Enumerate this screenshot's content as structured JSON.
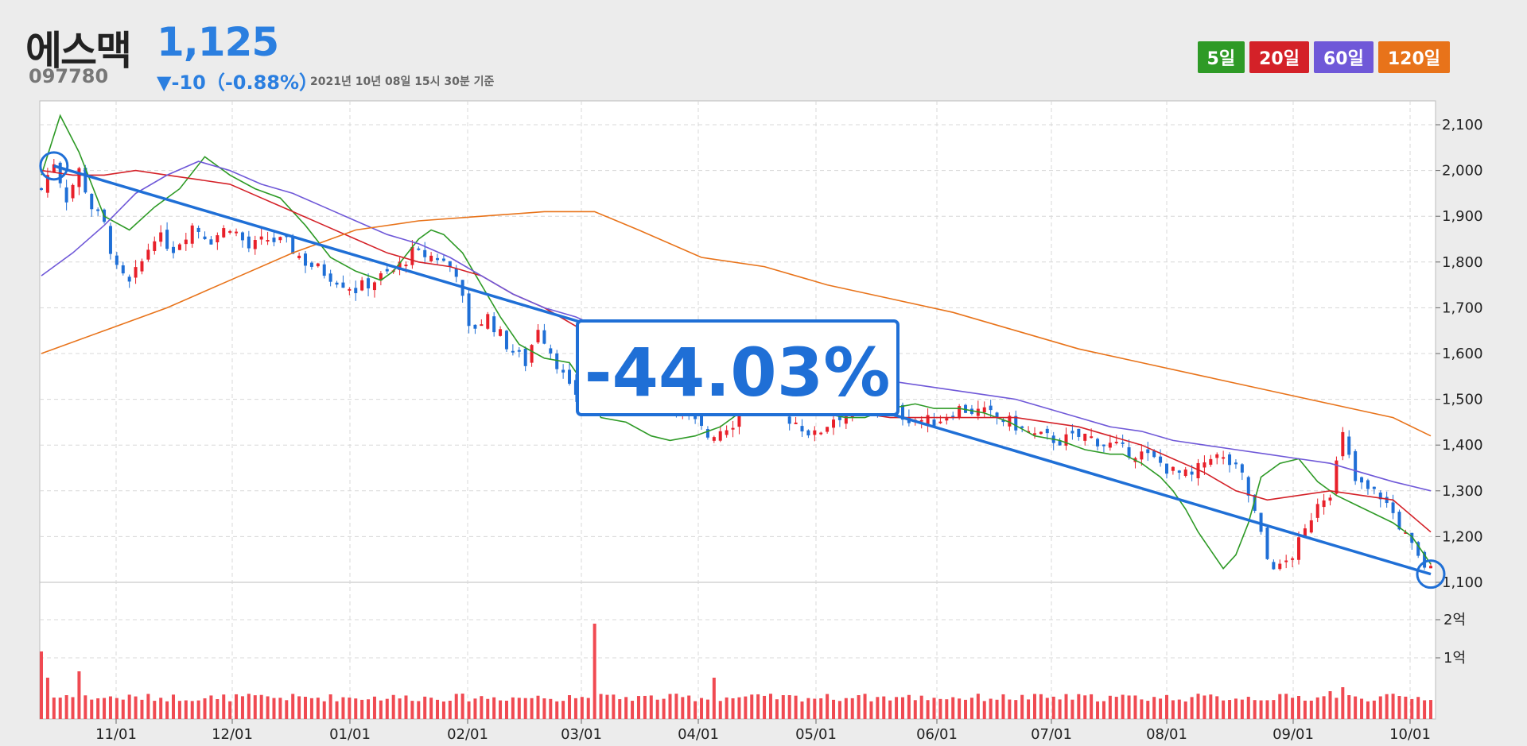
{
  "stock": {
    "name": "에스맥",
    "code": "097780",
    "price": "1,125",
    "change": "▼-10（-0.88%）",
    "as_of": "2021년 10년 08일 15시 30분 기준"
  },
  "ma_legend": [
    {
      "label": "5일",
      "color": "#2e9a26"
    },
    {
      "label": "20일",
      "color": "#d42128"
    },
    {
      "label": "60일",
      "color": "#6f58d8"
    },
    {
      "label": "120일",
      "color": "#e8731a"
    }
  ],
  "colors": {
    "up": "#e8202a",
    "down": "#1f6fd6",
    "ma5": "#2e9a26",
    "ma20": "#d42128",
    "ma60": "#6f58d8",
    "ma120": "#e8731a",
    "trend": "#1f6fd6",
    "volume": "#f04a52"
  },
  "chart_data": {
    "type": "line",
    "price_ticks": [
      "1,100",
      "1,200",
      "1,300",
      "1,400",
      "1,500",
      "1,600",
      "1,700",
      "1,800",
      "1,900",
      "2,000",
      "2,100"
    ],
    "volume_ticks": [
      "1억",
      "2억"
    ],
    "x_ticks": [
      "11/01",
      "12/01",
      "01/01",
      "02/01",
      "03/01",
      "04/01",
      "05/01",
      "06/01",
      "07/01",
      "08/01",
      "09/01",
      "10/01"
    ],
    "ylim": [
      1100,
      2100
    ],
    "trend_annotation": "-44.03%",
    "trend_line": {
      "start": 2010,
      "end": 1118
    },
    "ma_series": [
      {
        "name": "5일",
        "points": [
          [
            0,
            1990
          ],
          [
            3,
            2120
          ],
          [
            6,
            2040
          ],
          [
            10,
            1900
          ],
          [
            14,
            1870
          ],
          [
            18,
            1920
          ],
          [
            22,
            1960
          ],
          [
            26,
            2030
          ],
          [
            30,
            1990
          ],
          [
            34,
            1960
          ],
          [
            38,
            1940
          ],
          [
            42,
            1880
          ],
          [
            46,
            1810
          ],
          [
            50,
            1780
          ],
          [
            54,
            1760
          ],
          [
            56,
            1780
          ],
          [
            60,
            1850
          ],
          [
            62,
            1870
          ],
          [
            64,
            1860
          ],
          [
            67,
            1820
          ],
          [
            70,
            1750
          ],
          [
            73,
            1680
          ],
          [
            76,
            1620
          ],
          [
            80,
            1590
          ],
          [
            84,
            1580
          ],
          [
            87,
            1520
          ],
          [
            89,
            1460
          ],
          [
            93,
            1450
          ],
          [
            97,
            1420
          ],
          [
            100,
            1410
          ],
          [
            104,
            1420
          ],
          [
            108,
            1440
          ],
          [
            112,
            1480
          ],
          [
            116,
            1500
          ],
          [
            120,
            1490
          ],
          [
            124,
            1470
          ],
          [
            128,
            1460
          ],
          [
            131,
            1460
          ],
          [
            135,
            1480
          ],
          [
            139,
            1490
          ],
          [
            142,
            1480
          ],
          [
            146,
            1480
          ],
          [
            150,
            1470
          ],
          [
            154,
            1450
          ],
          [
            158,
            1420
          ],
          [
            162,
            1410
          ],
          [
            166,
            1390
          ],
          [
            170,
            1380
          ],
          [
            172,
            1380
          ],
          [
            175,
            1360
          ],
          [
            178,
            1330
          ],
          [
            180,
            1300
          ],
          [
            182,
            1260
          ],
          [
            184,
            1210
          ],
          [
            186,
            1170
          ],
          [
            188,
            1130
          ],
          [
            190,
            1160
          ],
          [
            192,
            1230
          ],
          [
            194,
            1330
          ],
          [
            197,
            1360
          ],
          [
            200,
            1370
          ],
          [
            203,
            1320
          ],
          [
            206,
            1290
          ],
          [
            209,
            1270
          ],
          [
            212,
            1250
          ],
          [
            215,
            1230
          ],
          [
            218,
            1200
          ],
          [
            221,
            1140
          ]
        ]
      },
      {
        "name": "20일",
        "points": [
          [
            0,
            2000
          ],
          [
            5,
            1990
          ],
          [
            10,
            1990
          ],
          [
            15,
            2000
          ],
          [
            20,
            1990
          ],
          [
            25,
            1980
          ],
          [
            30,
            1970
          ],
          [
            35,
            1940
          ],
          [
            40,
            1910
          ],
          [
            45,
            1880
          ],
          [
            50,
            1850
          ],
          [
            55,
            1820
          ],
          [
            60,
            1800
          ],
          [
            65,
            1790
          ],
          [
            70,
            1770
          ],
          [
            75,
            1730
          ],
          [
            80,
            1700
          ],
          [
            85,
            1660
          ],
          [
            90,
            1610
          ],
          [
            95,
            1570
          ],
          [
            100,
            1540
          ],
          [
            105,
            1520
          ],
          [
            110,
            1500
          ],
          [
            115,
            1500
          ],
          [
            120,
            1490
          ],
          [
            125,
            1480
          ],
          [
            130,
            1470
          ],
          [
            135,
            1460
          ],
          [
            140,
            1460
          ],
          [
            145,
            1460
          ],
          [
            150,
            1460
          ],
          [
            155,
            1460
          ],
          [
            160,
            1450
          ],
          [
            165,
            1440
          ],
          [
            170,
            1420
          ],
          [
            175,
            1400
          ],
          [
            180,
            1370
          ],
          [
            185,
            1340
          ],
          [
            190,
            1300
          ],
          [
            195,
            1280
          ],
          [
            200,
            1290
          ],
          [
            205,
            1300
          ],
          [
            210,
            1290
          ],
          [
            215,
            1280
          ],
          [
            221,
            1210
          ]
        ]
      },
      {
        "name": "60일",
        "points": [
          [
            0,
            1770
          ],
          [
            5,
            1820
          ],
          [
            10,
            1880
          ],
          [
            15,
            1950
          ],
          [
            20,
            1990
          ],
          [
            25,
            2020
          ],
          [
            30,
            2000
          ],
          [
            35,
            1970
          ],
          [
            40,
            1950
          ],
          [
            45,
            1920
          ],
          [
            50,
            1890
          ],
          [
            55,
            1860
          ],
          [
            60,
            1840
          ],
          [
            65,
            1810
          ],
          [
            70,
            1770
          ],
          [
            75,
            1730
          ],
          [
            80,
            1700
          ],
          [
            85,
            1680
          ],
          [
            90,
            1650
          ],
          [
            95,
            1620
          ],
          [
            100,
            1590
          ],
          [
            105,
            1570
          ],
          [
            110,
            1560
          ],
          [
            115,
            1560
          ],
          [
            120,
            1550
          ],
          [
            125,
            1550
          ],
          [
            130,
            1550
          ],
          [
            135,
            1540
          ],
          [
            140,
            1530
          ],
          [
            145,
            1520
          ],
          [
            150,
            1510
          ],
          [
            155,
            1500
          ],
          [
            160,
            1480
          ],
          [
            165,
            1460
          ],
          [
            170,
            1440
          ],
          [
            175,
            1430
          ],
          [
            180,
            1410
          ],
          [
            185,
            1400
          ],
          [
            190,
            1390
          ],
          [
            195,
            1380
          ],
          [
            200,
            1370
          ],
          [
            205,
            1360
          ],
          [
            210,
            1340
          ],
          [
            215,
            1320
          ],
          [
            221,
            1300
          ]
        ]
      },
      {
        "name": "120일",
        "points": [
          [
            0,
            1600
          ],
          [
            10,
            1650
          ],
          [
            20,
            1700
          ],
          [
            30,
            1760
          ],
          [
            40,
            1820
          ],
          [
            50,
            1870
          ],
          [
            60,
            1890
          ],
          [
            70,
            1900
          ],
          [
            80,
            1910
          ],
          [
            88,
            1910
          ],
          [
            95,
            1870
          ],
          [
            105,
            1810
          ],
          [
            115,
            1790
          ],
          [
            125,
            1750
          ],
          [
            135,
            1720
          ],
          [
            145,
            1690
          ],
          [
            155,
            1650
          ],
          [
            165,
            1610
          ],
          [
            175,
            1580
          ],
          [
            185,
            1550
          ],
          [
            195,
            1520
          ],
          [
            205,
            1490
          ],
          [
            215,
            1460
          ],
          [
            221,
            1420
          ]
        ]
      }
    ]
  }
}
